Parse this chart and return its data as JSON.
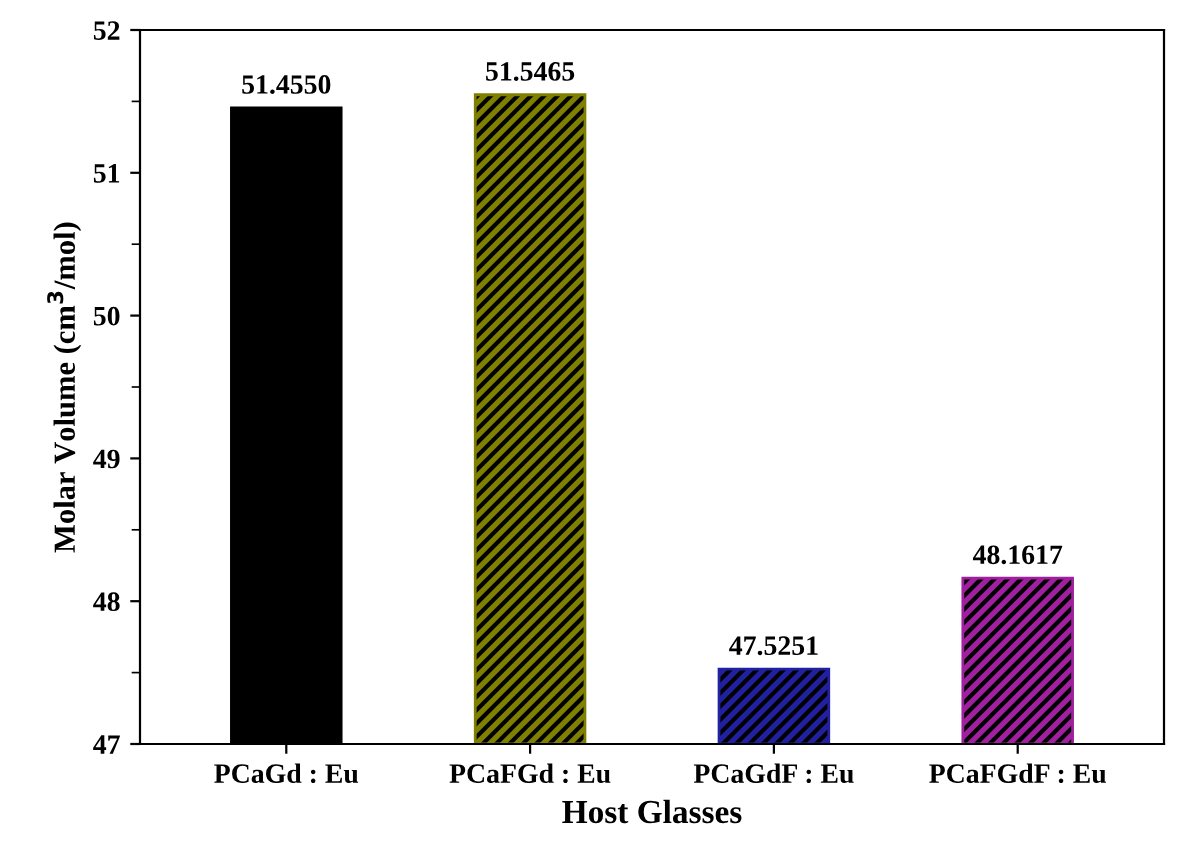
{
  "chart_data": {
    "type": "bar",
    "xlabel": "Host Glasses",
    "ylabel": "Molar Volume (cm$^{3}$/mol)",
    "categories": [
      "PCaGd : Eu",
      "PCaFGd : Eu",
      "PCaGdF : Eu",
      "PCaFGdF : Eu"
    ],
    "values": [
      51.455,
      51.5465,
      47.5251,
      48.1617
    ],
    "colors": [
      "#000000",
      "#808000",
      "#2020a0",
      "#a020a0"
    ],
    "value_labels": [
      "51.4550",
      "51.5465",
      "47.5251",
      "48.1617"
    ],
    "ylim": [
      47,
      52
    ],
    "yticks": [
      47,
      48,
      49,
      50,
      51,
      52
    ],
    "grid": false,
    "legend": false
  }
}
